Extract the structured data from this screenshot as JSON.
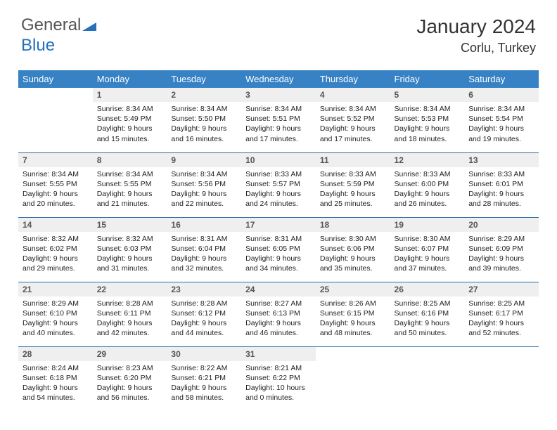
{
  "logo": {
    "part1": "General",
    "part2": "Blue"
  },
  "title": "January 2024",
  "location": "Corlu, Turkey",
  "colors": {
    "header_bg": "#3682c4",
    "header_text": "#ffffff",
    "daynum_bg": "#efefef",
    "row_border": "#2e6da4",
    "logo_accent": "#2570b8"
  },
  "weekdays": [
    "Sunday",
    "Monday",
    "Tuesday",
    "Wednesday",
    "Thursday",
    "Friday",
    "Saturday"
  ],
  "grid": [
    [
      null,
      {
        "n": "1",
        "sr": "8:34 AM",
        "ss": "5:49 PM",
        "dl": "9 hours and 15 minutes."
      },
      {
        "n": "2",
        "sr": "8:34 AM",
        "ss": "5:50 PM",
        "dl": "9 hours and 16 minutes."
      },
      {
        "n": "3",
        "sr": "8:34 AM",
        "ss": "5:51 PM",
        "dl": "9 hours and 17 minutes."
      },
      {
        "n": "4",
        "sr": "8:34 AM",
        "ss": "5:52 PM",
        "dl": "9 hours and 17 minutes."
      },
      {
        "n": "5",
        "sr": "8:34 AM",
        "ss": "5:53 PM",
        "dl": "9 hours and 18 minutes."
      },
      {
        "n": "6",
        "sr": "8:34 AM",
        "ss": "5:54 PM",
        "dl": "9 hours and 19 minutes."
      }
    ],
    [
      {
        "n": "7",
        "sr": "8:34 AM",
        "ss": "5:55 PM",
        "dl": "9 hours and 20 minutes."
      },
      {
        "n": "8",
        "sr": "8:34 AM",
        "ss": "5:55 PM",
        "dl": "9 hours and 21 minutes."
      },
      {
        "n": "9",
        "sr": "8:34 AM",
        "ss": "5:56 PM",
        "dl": "9 hours and 22 minutes."
      },
      {
        "n": "10",
        "sr": "8:33 AM",
        "ss": "5:57 PM",
        "dl": "9 hours and 24 minutes."
      },
      {
        "n": "11",
        "sr": "8:33 AM",
        "ss": "5:59 PM",
        "dl": "9 hours and 25 minutes."
      },
      {
        "n": "12",
        "sr": "8:33 AM",
        "ss": "6:00 PM",
        "dl": "9 hours and 26 minutes."
      },
      {
        "n": "13",
        "sr": "8:33 AM",
        "ss": "6:01 PM",
        "dl": "9 hours and 28 minutes."
      }
    ],
    [
      {
        "n": "14",
        "sr": "8:32 AM",
        "ss": "6:02 PM",
        "dl": "9 hours and 29 minutes."
      },
      {
        "n": "15",
        "sr": "8:32 AM",
        "ss": "6:03 PM",
        "dl": "9 hours and 31 minutes."
      },
      {
        "n": "16",
        "sr": "8:31 AM",
        "ss": "6:04 PM",
        "dl": "9 hours and 32 minutes."
      },
      {
        "n": "17",
        "sr": "8:31 AM",
        "ss": "6:05 PM",
        "dl": "9 hours and 34 minutes."
      },
      {
        "n": "18",
        "sr": "8:30 AM",
        "ss": "6:06 PM",
        "dl": "9 hours and 35 minutes."
      },
      {
        "n": "19",
        "sr": "8:30 AM",
        "ss": "6:07 PM",
        "dl": "9 hours and 37 minutes."
      },
      {
        "n": "20",
        "sr": "8:29 AM",
        "ss": "6:09 PM",
        "dl": "9 hours and 39 minutes."
      }
    ],
    [
      {
        "n": "21",
        "sr": "8:29 AM",
        "ss": "6:10 PM",
        "dl": "9 hours and 40 minutes."
      },
      {
        "n": "22",
        "sr": "8:28 AM",
        "ss": "6:11 PM",
        "dl": "9 hours and 42 minutes."
      },
      {
        "n": "23",
        "sr": "8:28 AM",
        "ss": "6:12 PM",
        "dl": "9 hours and 44 minutes."
      },
      {
        "n": "24",
        "sr": "8:27 AM",
        "ss": "6:13 PM",
        "dl": "9 hours and 46 minutes."
      },
      {
        "n": "25",
        "sr": "8:26 AM",
        "ss": "6:15 PM",
        "dl": "9 hours and 48 minutes."
      },
      {
        "n": "26",
        "sr": "8:25 AM",
        "ss": "6:16 PM",
        "dl": "9 hours and 50 minutes."
      },
      {
        "n": "27",
        "sr": "8:25 AM",
        "ss": "6:17 PM",
        "dl": "9 hours and 52 minutes."
      }
    ],
    [
      {
        "n": "28",
        "sr": "8:24 AM",
        "ss": "6:18 PM",
        "dl": "9 hours and 54 minutes."
      },
      {
        "n": "29",
        "sr": "8:23 AM",
        "ss": "6:20 PM",
        "dl": "9 hours and 56 minutes."
      },
      {
        "n": "30",
        "sr": "8:22 AM",
        "ss": "6:21 PM",
        "dl": "9 hours and 58 minutes."
      },
      {
        "n": "31",
        "sr": "8:21 AM",
        "ss": "6:22 PM",
        "dl": "10 hours and 0 minutes."
      },
      null,
      null,
      null
    ]
  ],
  "labels": {
    "sunrise": "Sunrise:",
    "sunset": "Sunset:",
    "daylight": "Daylight:"
  }
}
